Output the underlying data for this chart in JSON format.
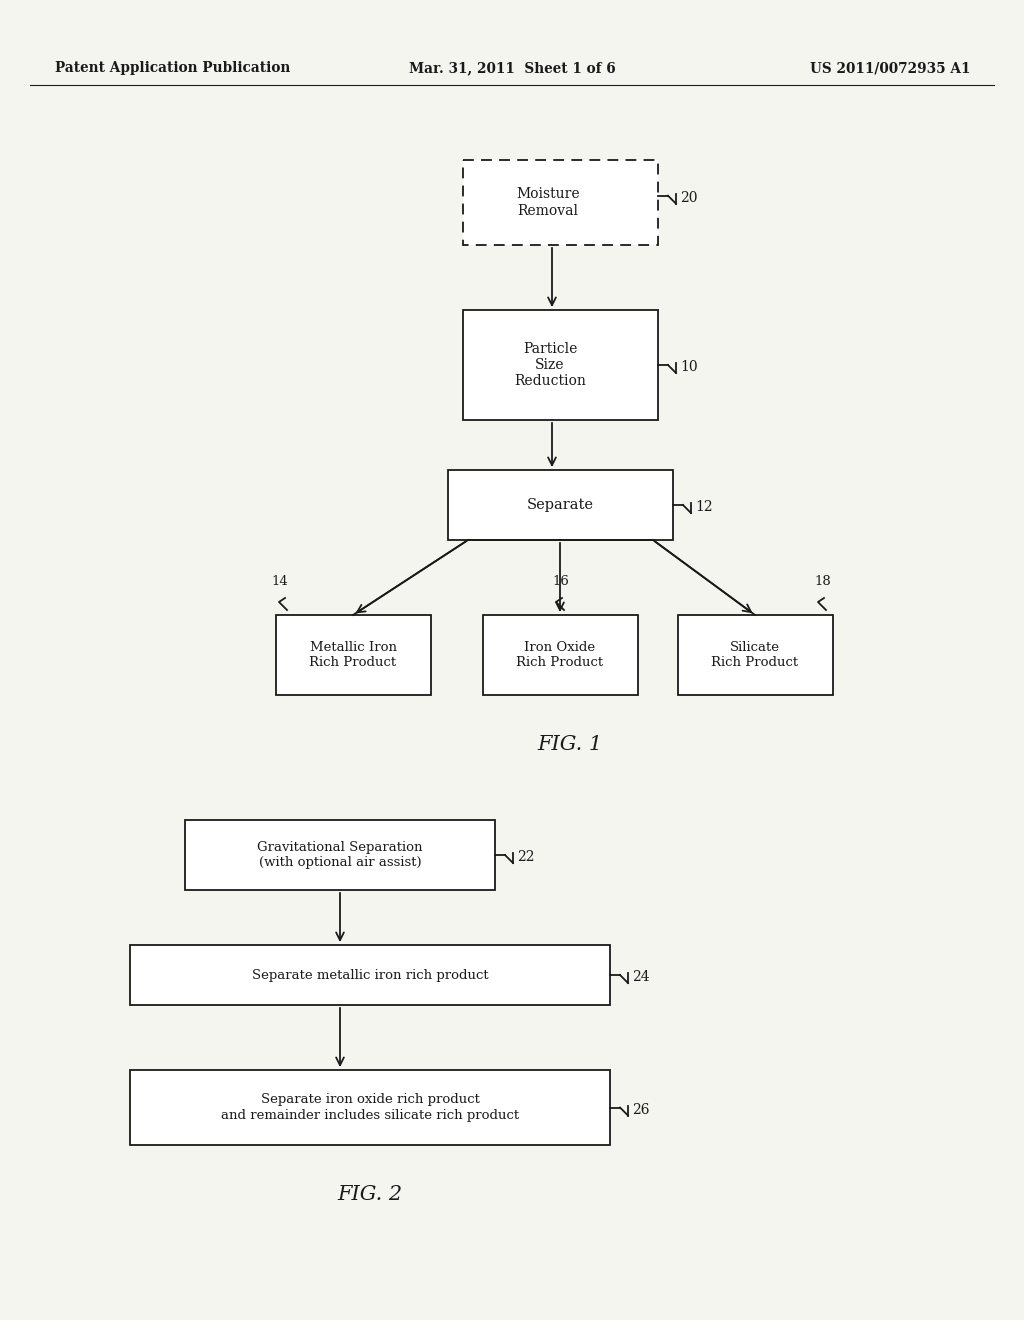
{
  "bg_color": "#f5f5f0",
  "header_left": "Patent Application Publication",
  "header_center": "Mar. 31, 2011  Sheet 1 of 6",
  "header_right": "US 2011/0072935 A1",
  "fig1_caption": "FIG. 1",
  "fig2_caption": "FIG. 2",
  "box_moisture": "Moisture\nRemoval",
  "label_20": "20",
  "box_particle": "Particle\nSize\nReduction",
  "label_10": "10",
  "box_separate": "Separate",
  "label_12": "12",
  "box_metallic": "Metallic Iron\nRich Product",
  "label_14": "14",
  "box_ironoxide": "Iron Oxide\nRich Product",
  "label_16": "16",
  "box_silicate": "Silicate\nRich Product",
  "label_18": "18",
  "box_grav": "Gravitational Separation\n(with optional air assist)",
  "label_22": "22",
  "box_sep_metallic": "Separate metallic iron rich product",
  "label_24": "24",
  "box_sep_ironoxide": "Separate iron oxide rich product\nand remainder includes silicate rich product",
  "label_26": "26",
  "line_color": "#1a1a1a",
  "text_color": "#1a1a1a"
}
